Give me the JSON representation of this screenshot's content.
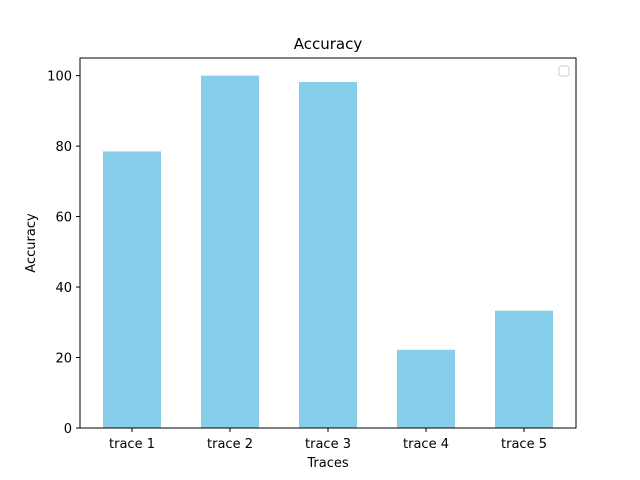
{
  "chart_data": {
    "type": "bar",
    "title": "Accuracy",
    "xlabel": "Traces",
    "ylabel": "Accuracy",
    "categories": [
      "trace 1",
      "trace 2",
      "trace 3",
      "trace 4",
      "trace 5"
    ],
    "values": [
      78.5,
      100,
      98.2,
      22.2,
      33.3
    ],
    "ylim": [
      0,
      105
    ],
    "yticks": [
      0,
      20,
      40,
      60,
      80,
      100
    ],
    "bar_color": "#87CEEB",
    "grid": false,
    "legend": {
      "placement": "top-right",
      "entries": []
    }
  }
}
